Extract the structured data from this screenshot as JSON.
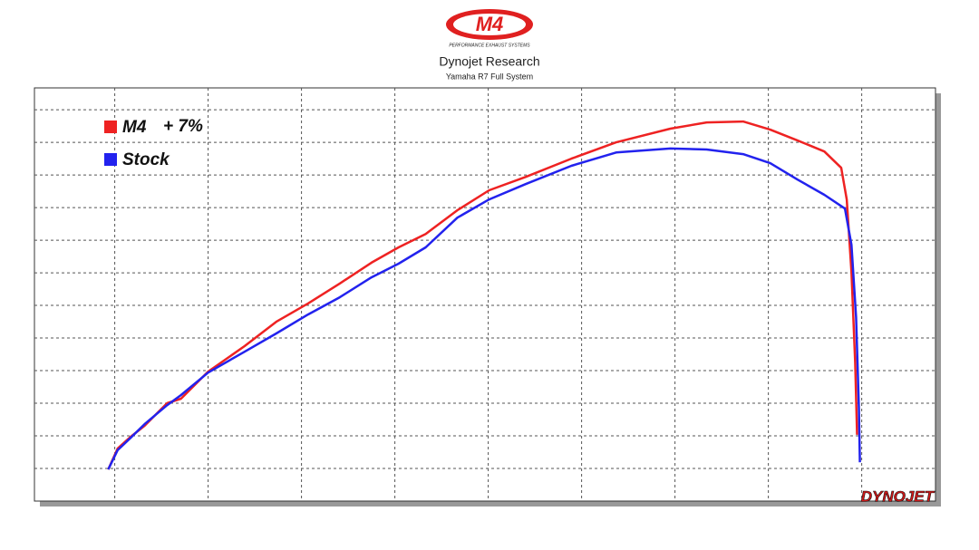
{
  "chart_data": {
    "type": "line",
    "logo": {
      "text": "M4",
      "tagline": "PERFORMANCE EXHAUST SYSTEMS"
    },
    "title": "Dynojet Research",
    "subtitle": "Yamaha R7 Full System",
    "annotation": "+ 7%",
    "watermark": "DYNOJET",
    "grid": true,
    "legend": "top-left",
    "xlim": [
      -0.86,
      8.79
    ],
    "ylim": [
      0,
      12.67
    ],
    "xticks": [
      0,
      1,
      2,
      3,
      4,
      5,
      6,
      7,
      8
    ],
    "yticks": [
      1,
      2,
      3,
      4,
      5,
      6,
      7,
      8,
      9,
      10,
      11,
      12
    ],
    "series": [
      {
        "name": "M4",
        "color": "#ee2222",
        "x": [
          -0.07,
          0.03,
          0.17,
          0.32,
          0.56,
          0.71,
          1.0,
          1.39,
          1.73,
          2.07,
          2.41,
          2.75,
          3.04,
          3.33,
          3.67,
          4.01,
          4.4,
          4.89,
          5.37,
          5.95,
          6.34,
          6.73,
          7.02,
          7.31,
          7.6,
          7.78,
          7.84,
          7.89,
          7.93,
          7.95
        ],
        "values": [
          0.97,
          1.61,
          1.97,
          2.31,
          3.0,
          3.14,
          3.97,
          4.75,
          5.5,
          6.06,
          6.67,
          7.31,
          7.78,
          8.19,
          8.92,
          9.53,
          9.94,
          10.5,
          11.0,
          11.42,
          11.61,
          11.64,
          11.39,
          11.06,
          10.72,
          10.22,
          9.25,
          7.03,
          4.25,
          2.03
        ]
      },
      {
        "name": "Stock",
        "color": "#2222ee",
        "x": [
          -0.07,
          0.03,
          0.17,
          0.32,
          0.56,
          0.71,
          1.0,
          1.39,
          1.73,
          2.07,
          2.41,
          2.75,
          3.04,
          3.33,
          3.67,
          4.01,
          4.4,
          4.89,
          5.37,
          5.95,
          6.34,
          6.73,
          7.02,
          7.31,
          7.6,
          7.82,
          7.89,
          7.94,
          7.97,
          7.98
        ],
        "values": [
          0.97,
          1.56,
          1.94,
          2.36,
          2.94,
          3.25,
          3.94,
          4.58,
          5.14,
          5.72,
          6.25,
          6.86,
          7.28,
          7.78,
          8.69,
          9.25,
          9.72,
          10.28,
          10.69,
          10.81,
          10.78,
          10.64,
          10.36,
          9.86,
          9.39,
          8.97,
          7.86,
          5.64,
          2.86,
          1.19
        ]
      }
    ]
  }
}
